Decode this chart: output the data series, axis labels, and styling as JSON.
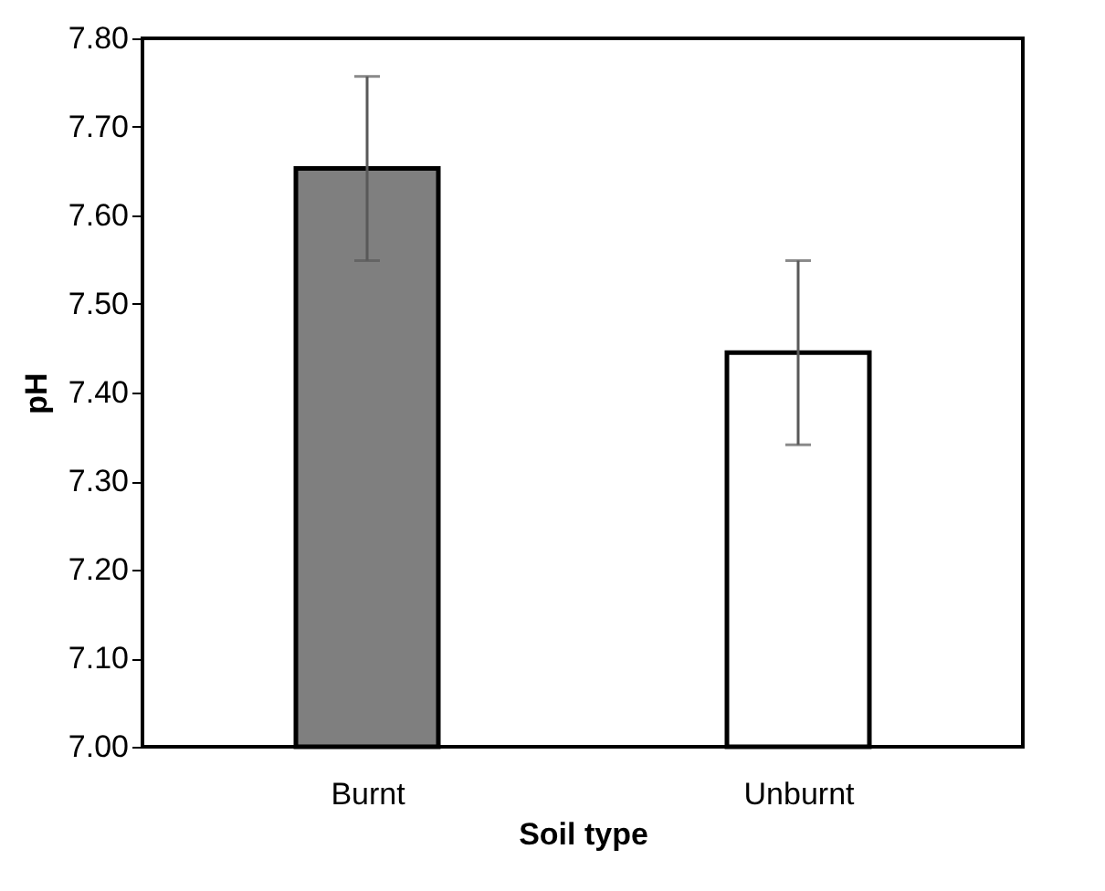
{
  "chart_data": {
    "type": "bar",
    "categories": [
      "Burnt",
      "Unburnt"
    ],
    "values": [
      7.653,
      7.445
    ],
    "errors": [
      0.104,
      0.104
    ],
    "colors": [
      "#7f7f7f",
      "#ffffff"
    ],
    "xlabel": "Soil type",
    "ylabel": "pH",
    "ylim": [
      7.0,
      7.8
    ],
    "yticks": [
      {
        "value": 7.0,
        "label": "7.00"
      },
      {
        "value": 7.1,
        "label": "7.10"
      },
      {
        "value": 7.2,
        "label": "7.20"
      },
      {
        "value": 7.3,
        "label": "7.30"
      },
      {
        "value": 7.4,
        "label": "7.40"
      },
      {
        "value": 7.5,
        "label": "7.50"
      },
      {
        "value": 7.6,
        "label": "7.60"
      },
      {
        "value": 7.7,
        "label": "7.70"
      },
      {
        "value": 7.8,
        "label": "7.80"
      }
    ],
    "grid": false
  }
}
